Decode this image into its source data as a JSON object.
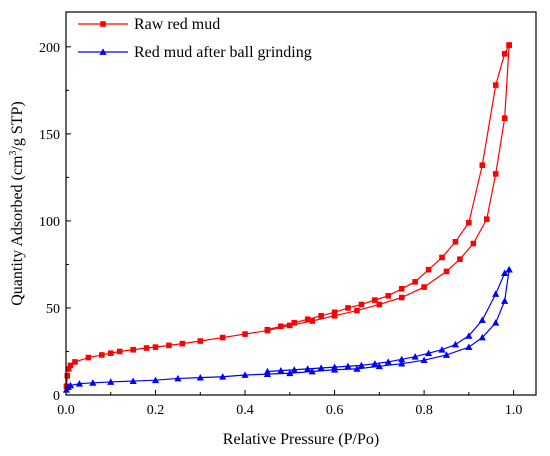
{
  "chart_data": {
    "type": "line",
    "xlabel": "Relative Pressure (P/Po)",
    "ylabel_parts": [
      "Quantity Adsorbed (cm",
      "3",
      "/g STP)"
    ],
    "xlim": [
      0,
      1.05
    ],
    "ylim": [
      0,
      220
    ],
    "xticks": [
      0.0,
      0.2,
      0.4,
      0.6,
      0.8,
      1.0
    ],
    "xtick_labels": [
      "0.0",
      "0.2",
      "0.4",
      "0.6",
      "0.8",
      "1.0"
    ],
    "yticks": [
      0,
      50,
      100,
      150,
      200
    ],
    "ytick_labels": [
      "0",
      "50",
      "100",
      "150",
      "200"
    ],
    "grid": false,
    "legend_position": "top-left",
    "series": [
      {
        "name": "Raw red mud",
        "color": "#ff0000",
        "marker": "square",
        "adsorption": {
          "x": [
            0.001,
            0.003,
            0.006,
            0.01,
            0.02,
            0.05,
            0.08,
            0.1,
            0.12,
            0.15,
            0.18,
            0.2,
            0.23,
            0.26,
            0.3,
            0.35,
            0.4,
            0.45,
            0.5,
            0.55,
            0.6,
            0.65,
            0.7,
            0.75,
            0.8,
            0.85,
            0.88,
            0.91,
            0.94,
            0.96,
            0.98,
            0.99
          ],
          "y": [
            5,
            11,
            15,
            17,
            19,
            21.5,
            23,
            24,
            25,
            26,
            27,
            27.5,
            28.5,
            29.5,
            31,
            33,
            35,
            37,
            40,
            42.5,
            45.5,
            48.5,
            52,
            56,
            62,
            71,
            78,
            87,
            101,
            127,
            159,
            201
          ]
        },
        "desorption": {
          "x": [
            0.99,
            0.98,
            0.96,
            0.93,
            0.9,
            0.87,
            0.84,
            0.81,
            0.78,
            0.75,
            0.72,
            0.69,
            0.66,
            0.63,
            0.6,
            0.57,
            0.54,
            0.51,
            0.48,
            0.45
          ],
          "y": [
            201,
            196,
            178,
            132,
            99,
            88,
            79,
            72,
            65,
            61,
            57,
            54.5,
            52,
            50,
            47.5,
            45.5,
            43.5,
            41.5,
            39.5,
            37.5
          ]
        }
      },
      {
        "name": "Red mud after ball grinding",
        "color": "#0000ff",
        "marker": "triangle",
        "adsorption": {
          "x": [
            0.001,
            0.005,
            0.01,
            0.03,
            0.06,
            0.1,
            0.15,
            0.2,
            0.25,
            0.3,
            0.35,
            0.4,
            0.45,
            0.5,
            0.55,
            0.6,
            0.65,
            0.7,
            0.75,
            0.8,
            0.85,
            0.9,
            0.93,
            0.96,
            0.98,
            0.99
          ],
          "y": [
            3,
            4.5,
            5.5,
            6.5,
            7,
            7.5,
            8,
            8.5,
            9.5,
            10,
            10.5,
            11.5,
            12,
            12.5,
            13.5,
            14.5,
            15,
            16.5,
            18,
            20,
            23,
            27.5,
            33,
            41.5,
            54,
            72
          ]
        },
        "desorption": {
          "x": [
            0.99,
            0.98,
            0.96,
            0.93,
            0.9,
            0.87,
            0.84,
            0.81,
            0.78,
            0.75,
            0.72,
            0.69,
            0.66,
            0.63,
            0.6,
            0.57,
            0.54,
            0.51,
            0.48,
            0.45
          ],
          "y": [
            72,
            70,
            58,
            43,
            34,
            29,
            26,
            24,
            22,
            20.5,
            19,
            18,
            17,
            16.5,
            16,
            15.5,
            15,
            14.5,
            14,
            13.5
          ]
        }
      }
    ]
  }
}
